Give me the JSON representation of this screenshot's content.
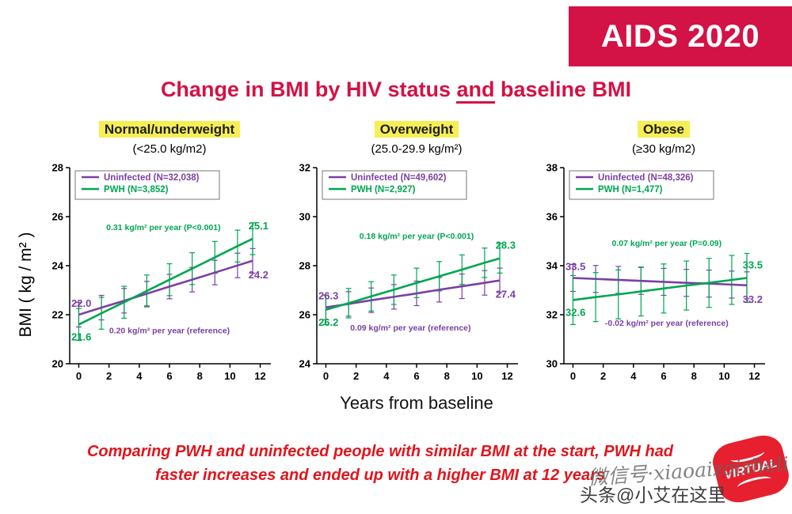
{
  "banner": {
    "label": "AIDS 2020"
  },
  "title": {
    "pre": "Change in BMI by HIV status ",
    "emph": "and",
    "post": " baseline BMI"
  },
  "xlabel": "Years from baseline",
  "ylabel": "BMI ( kg / m² )",
  "footer": {
    "line1": "Comparing PWH and uninfected people with similar BMI at the start, PWH had",
    "line2": "faster increases and ended up with a higher BMI at 12 years"
  },
  "watermarks": {
    "wechat": "微信号·xiaoaizaizheli",
    "toutiao": "头条@小艾在这里",
    "stamp": "VIRTUAL"
  },
  "colors": {
    "uninfected": "#7c3fa4",
    "pwh": "#00a651",
    "accent_red": "#d31245",
    "footer_red": "#e0151c",
    "highlight": "#f7ee55"
  },
  "chart_data": [
    {
      "type": "line",
      "header": "Normal/underweight",
      "subtitle": "(<25.0 kg/m2)",
      "x": [
        0,
        1.5,
        3,
        4.5,
        6,
        7.5,
        9,
        10.5,
        11.5
      ],
      "xticks": [
        0,
        2,
        4,
        6,
        8,
        10,
        12
      ],
      "ylim": [
        20,
        28
      ],
      "yticks": [
        20,
        22,
        24,
        26,
        28
      ],
      "series": [
        {
          "name": "Uninfected (N=32,038)",
          "color": "uninfected",
          "err": 0.5,
          "values": [
            22.0,
            22.29,
            22.57,
            22.86,
            23.15,
            23.43,
            23.72,
            24.01,
            24.2
          ],
          "start_label": "22.0",
          "end_label": "24.2"
        },
        {
          "name": "PWH (N=3,852)",
          "color": "pwh",
          "err": 0.65,
          "values": [
            21.6,
            22.06,
            22.51,
            22.97,
            23.43,
            23.88,
            24.34,
            24.8,
            25.1
          ],
          "start_label": "21.6",
          "end_label": "25.1"
        }
      ],
      "annotations": [
        {
          "text": "0.31 kg/m² per year (P<0.001)",
          "color": "pwh",
          "x": 5.6,
          "y": 25.45
        },
        {
          "text": "0.20 kg/m² per year (reference)",
          "color": "uninfected",
          "x": 6.0,
          "y": 21.25
        }
      ]
    },
    {
      "type": "line",
      "header": "Overweight",
      "subtitle": "(25.0-29.9 kg/m²)",
      "x": [
        0,
        1.5,
        3,
        4.5,
        6,
        7.5,
        9,
        10.5,
        11.5
      ],
      "xticks": [
        0,
        2,
        4,
        6,
        8,
        10,
        12
      ],
      "ylim": [
        24,
        32
      ],
      "yticks": [
        24,
        26,
        28,
        30,
        32
      ],
      "series": [
        {
          "name": "Uninfected (N=49,602)",
          "color": "uninfected",
          "err": 0.5,
          "values": [
            26.3,
            26.44,
            26.59,
            26.73,
            26.87,
            27.02,
            27.16,
            27.3,
            27.4
          ],
          "start_label": "26.3",
          "end_label": "27.4"
        },
        {
          "name": "PWH (N=2,927)",
          "color": "pwh",
          "err": 0.6,
          "values": [
            26.2,
            26.47,
            26.75,
            27.02,
            27.3,
            27.57,
            27.84,
            28.12,
            28.3
          ],
          "start_label": "26.2",
          "end_label": "28.3"
        }
      ],
      "annotations": [
        {
          "text": "0.18 kg/m² per year (P<0.001)",
          "color": "pwh",
          "x": 6.0,
          "y": 29.1
        },
        {
          "text": "0.09 kg/m² per year (reference)",
          "color": "uninfected",
          "x": 5.6,
          "y": 25.35
        }
      ]
    },
    {
      "type": "line",
      "header": "Obese",
      "subtitle": "(≥30 kg/m2)",
      "x": [
        0,
        1.5,
        3,
        4.5,
        6,
        7.5,
        9,
        10.5,
        11.5
      ],
      "xticks": [
        0,
        2,
        4,
        6,
        8,
        10,
        12
      ],
      "ylim": [
        30,
        38
      ],
      "yticks": [
        30,
        32,
        34,
        36,
        38
      ],
      "series": [
        {
          "name": "Uninfected (N=48,326)",
          "color": "uninfected",
          "err": 0.55,
          "values": [
            33.5,
            33.46,
            33.42,
            33.38,
            33.34,
            33.3,
            33.27,
            33.23,
            33.2
          ],
          "start_label": "33.5",
          "end_label": "33.2"
        },
        {
          "name": "PWH (N=1,477)",
          "color": "pwh",
          "err": 1.0,
          "values": [
            32.6,
            32.72,
            32.83,
            32.95,
            33.07,
            33.19,
            33.3,
            33.42,
            33.5
          ],
          "start_label": "32.6",
          "end_label": "33.5"
        }
      ],
      "annotations": [
        {
          "text": "0.07 kg/m² per year (P=0.09)",
          "color": "pwh",
          "x": 6.2,
          "y": 34.8
        },
        {
          "text": "-0.02 kg/m² per year (reference)",
          "color": "uninfected",
          "x": 6.2,
          "y": 31.55
        }
      ]
    }
  ]
}
